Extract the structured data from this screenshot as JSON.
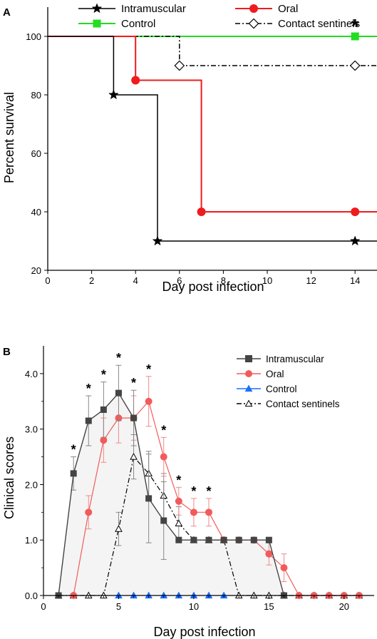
{
  "chart_data": [
    {
      "type": "line",
      "panel_label": "A",
      "xlabel": "Day post infection",
      "ylabel": "Percent survival",
      "xlim": [
        0,
        15
      ],
      "ylim": [
        20,
        110
      ],
      "xticks": [
        0,
        2,
        4,
        6,
        8,
        10,
        12,
        14
      ],
      "yticks": [
        20,
        40,
        60,
        80,
        100
      ],
      "grid": false,
      "step": true,
      "legend_position": "top",
      "series": [
        {
          "name": "Intramuscular",
          "color": "#000000",
          "marker": "star",
          "line_style": "solid",
          "x": [
            0,
            3,
            5,
            14,
            15
          ],
          "y": [
            100,
            80,
            30,
            30,
            30
          ],
          "marker_x": [
            3,
            5,
            14
          ]
        },
        {
          "name": "Oral",
          "color": "#ee1c1c",
          "marker": "circle",
          "line_style": "solid",
          "x": [
            0,
            4,
            7,
            14,
            15
          ],
          "y": [
            100,
            85,
            40,
            40,
            40
          ],
          "marker_x": [
            4,
            7,
            14
          ]
        },
        {
          "name": "Control",
          "color": "#22dd22",
          "marker": "square",
          "line_style": "solid",
          "x": [
            0,
            14,
            15
          ],
          "y": [
            100,
            100,
            100
          ],
          "marker_x": [
            14
          ]
        },
        {
          "name": "Contact sentinels",
          "color": "#000000",
          "marker": "diamond-open",
          "line_style": "dashdot",
          "x": [
            0,
            6,
            14,
            15
          ],
          "y": [
            100,
            90,
            90,
            90
          ],
          "marker_x": [
            6,
            14
          ]
        }
      ],
      "annotations": [
        {
          "text": "*",
          "x": 14,
          "y": 100
        }
      ]
    },
    {
      "type": "line",
      "panel_label": "B",
      "xlabel": "Day post infection",
      "ylabel": "Clinical scores",
      "xlim": [
        0,
        22
      ],
      "ylim": [
        0,
        4.5
      ],
      "xticks": [
        0,
        5,
        10,
        15,
        20
      ],
      "yticks": [
        "0.0",
        "1.0",
        "2.0",
        "3.0",
        "4.0"
      ],
      "grid": false,
      "legend_position": "top-right",
      "series": [
        {
          "name": "Intramuscular",
          "color": "#444444",
          "marker": "square",
          "line_style": "solid",
          "x": [
            1,
            2,
            3,
            4,
            5,
            6,
            7,
            8,
            9,
            10,
            11,
            12,
            13,
            14,
            15,
            16
          ],
          "y": [
            0,
            2.2,
            3.15,
            3.35,
            3.65,
            3.2,
            1.75,
            1.35,
            1.0,
            1.0,
            1.0,
            1.0,
            1.0,
            1.0,
            1.0,
            0
          ],
          "err": [
            0,
            0.3,
            0.45,
            0.5,
            0.5,
            0.5,
            0.8,
            0.7,
            0,
            0,
            0,
            0,
            0,
            0,
            0,
            0
          ]
        },
        {
          "name": "Oral",
          "color": "#f25b5b",
          "marker": "circle",
          "line_style": "solid",
          "x": [
            2,
            3,
            4,
            5,
            6,
            7,
            8,
            9,
            10,
            11,
            12,
            13,
            14,
            15,
            16,
            17,
            18,
            19,
            20,
            21
          ],
          "y": [
            0,
            1.5,
            2.8,
            3.2,
            3.2,
            3.5,
            2.5,
            1.7,
            1.5,
            1.5,
            1.0,
            1.0,
            1.0,
            0.75,
            0.5,
            0,
            0,
            0,
            0,
            0
          ],
          "err": [
            0,
            0.3,
            0.4,
            0.45,
            0.4,
            0.45,
            0.35,
            0.25,
            0.25,
            0.25,
            0,
            0,
            0,
            0.2,
            0.25,
            0,
            0,
            0,
            0,
            0
          ]
        },
        {
          "name": "Control",
          "color": "#1a6fff",
          "marker": "triangle",
          "line_style": "solid",
          "x": [
            1,
            2,
            3,
            4,
            5,
            6,
            7,
            8,
            9,
            10,
            11,
            12,
            13,
            14,
            15,
            16,
            17,
            18,
            19,
            20,
            21
          ],
          "y": [
            0,
            0,
            0,
            0,
            0,
            0,
            0,
            0,
            0,
            0,
            0,
            0,
            0,
            0,
            0,
            0,
            0,
            0,
            0,
            0,
            0
          ],
          "marker_x": [
            5,
            6,
            7,
            8,
            9,
            10,
            11,
            12
          ]
        },
        {
          "name": "Contact sentinels",
          "color": "#000000",
          "marker": "triangle-open",
          "line_style": "dashdot",
          "x": [
            1,
            2,
            3,
            4,
            5,
            6,
            7,
            8,
            9,
            10,
            11,
            12,
            13,
            14,
            15,
            16,
            17,
            18,
            19,
            20,
            21
          ],
          "y": [
            0,
            0,
            0,
            0,
            1.2,
            2.5,
            2.2,
            1.8,
            1.3,
            1.0,
            1.0,
            1.0,
            0,
            0,
            0,
            0,
            0,
            0,
            0,
            0,
            0
          ],
          "err": [
            0,
            0,
            0,
            0,
            0.3,
            0.4,
            0.4,
            0.4,
            0.3,
            0,
            0,
            0,
            0,
            0,
            0,
            0,
            0,
            0,
            0,
            0,
            0
          ]
        }
      ],
      "significance_marks": [
        {
          "text": "*",
          "x": 2,
          "y": 2.2
        },
        {
          "text": "*",
          "x": 3,
          "y": 3.15
        },
        {
          "text": "*",
          "x": 4,
          "y": 3.35
        },
        {
          "text": "*",
          "x": 5,
          "y": 3.65
        },
        {
          "text": "*",
          "x": 6,
          "y": 3.2
        },
        {
          "text": "*",
          "x": 7,
          "y": 3.5
        },
        {
          "text": "*",
          "x": 8,
          "y": 2.5
        },
        {
          "text": "*",
          "x": 9,
          "y": 1.7
        },
        {
          "text": "*",
          "x": 10,
          "y": 1.5
        },
        {
          "text": "*",
          "x": 11,
          "y": 1.5
        }
      ]
    }
  ]
}
